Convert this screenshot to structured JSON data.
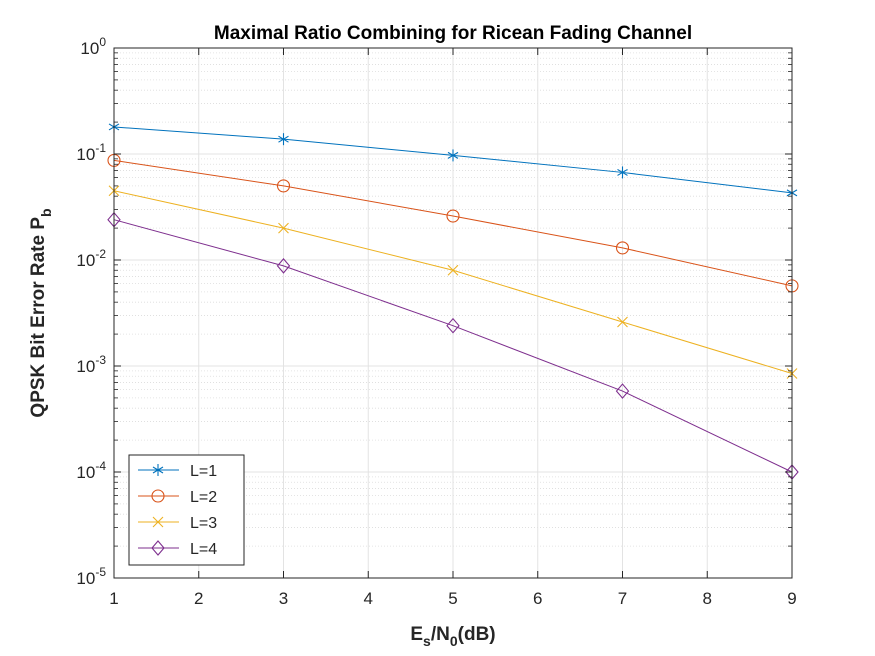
{
  "chart_data": {
    "type": "line",
    "title": "Maximal Ratio Combining for Ricean Fading Channel",
    "xlabel": {
      "base": "E",
      "sub1": "s",
      "mid": "/N",
      "sub2": "0",
      "tail": "(dB)"
    },
    "ylabel": {
      "base": "QPSK Bit Error Rate P",
      "sub": "b"
    },
    "x_scale": "linear",
    "y_scale": "log",
    "xlim": [
      1,
      9
    ],
    "ylim": [
      1e-05,
      1
    ],
    "grid": true,
    "minor_grid": true,
    "x_ticks": [
      "1",
      "2",
      "3",
      "4",
      "5",
      "6",
      "7",
      "8",
      "9"
    ],
    "y_ticks": [
      {
        "base": "10",
        "exp": "-5"
      },
      {
        "base": "10",
        "exp": "-4"
      },
      {
        "base": "10",
        "exp": "-3"
      },
      {
        "base": "10",
        "exp": "-2"
      },
      {
        "base": "10",
        "exp": "-1"
      },
      {
        "base": "10",
        "exp": "0"
      }
    ],
    "legend_position": "bottom-left",
    "x": [
      1,
      3,
      5,
      7,
      9
    ],
    "series": [
      {
        "name": "L=1",
        "color": "#0072BD",
        "marker": "asterisk",
        "values": [
          0.18,
          0.138,
          0.097,
          0.067,
          0.043
        ]
      },
      {
        "name": "L=2",
        "color": "#D95319",
        "marker": "circle",
        "values": [
          0.087,
          0.05,
          0.026,
          0.013,
          0.0057
        ]
      },
      {
        "name": "L=3",
        "color": "#EDB120",
        "marker": "x",
        "values": [
          0.045,
          0.02,
          0.008,
          0.0026,
          0.00085
        ]
      },
      {
        "name": "L=4",
        "color": "#7E2F8E",
        "marker": "diamond",
        "values": [
          0.024,
          0.0088,
          0.0024,
          0.00058,
          0.0001
        ]
      }
    ]
  }
}
